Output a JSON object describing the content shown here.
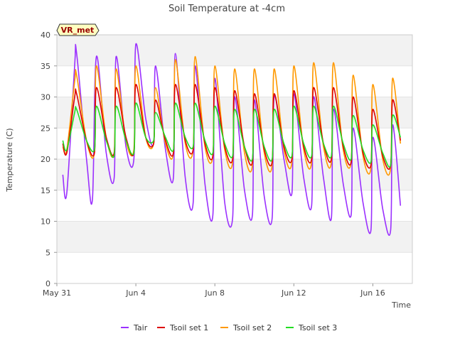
{
  "chart_data": {
    "type": "line",
    "title": "Soil Temperature at -4cm",
    "xlabel": "Time",
    "ylabel": "Temperature (C)",
    "ylim": [
      0,
      40
    ],
    "xlim_days": [
      0,
      18.0
    ],
    "yticks": [
      0,
      5,
      10,
      15,
      20,
      25,
      30,
      35,
      40
    ],
    "xticks": [
      {
        "day": 0,
        "label": "May 31"
      },
      {
        "day": 4,
        "label": "Jun 4"
      },
      {
        "day": 8,
        "label": "Jun 8"
      },
      {
        "day": 12,
        "label": "Jun 12"
      },
      {
        "day": 16,
        "label": "Jun 16"
      }
    ],
    "grid": true,
    "legend_position": "bottom",
    "badge": "VR_met",
    "series": [
      {
        "name": "Tair",
        "color": "#9b30ff",
        "x": [
          0.3,
          0.5,
          0.9,
          1.0,
          1.5,
          1.8,
          2.0,
          2.5,
          2.9,
          3.0,
          3.5,
          3.9,
          4.0,
          4.5,
          4.9,
          5.0,
          5.5,
          5.9,
          6.0,
          6.5,
          6.9,
          7.0,
          7.5,
          7.9,
          8.0,
          8.5,
          8.9,
          9.0,
          9.5,
          9.9,
          10.0,
          10.5,
          10.9,
          11.0,
          11.5,
          11.9,
          12.0,
          12.5,
          12.9,
          13.0,
          13.5,
          13.9,
          14.0,
          14.5,
          14.9,
          15.0,
          15.5,
          15.9,
          16.0,
          16.5,
          16.9,
          17.0,
          17.4
        ],
        "y": [
          17.5,
          14.5,
          35.0,
          37.0,
          20.0,
          13.5,
          36.5,
          21.0,
          17.0,
          36.5,
          22.0,
          20.0,
          38.5,
          26.5,
          22.5,
          35.0,
          21.5,
          17.0,
          37.0,
          17.0,
          13.0,
          35.0,
          16.0,
          11.0,
          33.0,
          13.0,
          10.5,
          30.0,
          15.0,
          11.0,
          29.5,
          14.0,
          10.5,
          30.0,
          20.0,
          14.5,
          30.5,
          17.0,
          12.5,
          30.0,
          17.0,
          10.5,
          28.0,
          16.0,
          11.0,
          25.0,
          13.0,
          8.5,
          23.5,
          12.0,
          8.5,
          25.5,
          12.5
        ]
      },
      {
        "name": "Tsoil set 1",
        "color": "#dd0000",
        "x": [
          0.3,
          0.5,
          0.9,
          1.0,
          1.5,
          1.9,
          2.0,
          2.5,
          2.9,
          3.0,
          3.5,
          3.9,
          4.0,
          4.5,
          4.9,
          5.0,
          5.5,
          5.9,
          6.0,
          6.5,
          6.9,
          7.0,
          7.5,
          7.9,
          8.0,
          8.5,
          8.9,
          9.0,
          9.5,
          9.9,
          10.0,
          10.5,
          10.9,
          11.0,
          11.5,
          11.9,
          12.0,
          12.5,
          12.9,
          13.0,
          13.5,
          13.9,
          14.0,
          14.5,
          14.9,
          15.0,
          15.5,
          15.9,
          16.0,
          16.5,
          16.9,
          17.0,
          17.4
        ],
        "y": [
          22.5,
          21.0,
          30.0,
          30.5,
          23.0,
          21.0,
          31.5,
          23.5,
          21.0,
          31.5,
          23.5,
          21.0,
          32.0,
          23.5,
          22.5,
          29.5,
          23.0,
          21.0,
          32.0,
          23.0,
          21.5,
          32.0,
          22.5,
          20.5,
          31.5,
          22.0,
          20.0,
          31.0,
          22.0,
          19.5,
          30.5,
          21.5,
          19.5,
          30.5,
          22.0,
          20.0,
          31.0,
          22.0,
          20.0,
          31.5,
          22.5,
          20.0,
          31.5,
          22.0,
          19.5,
          30.0,
          21.0,
          19.0,
          28.0,
          20.5,
          19.0,
          29.5,
          23.0
        ]
      },
      {
        "name": "Tsoil set 2",
        "color": "#ff9900",
        "x": [
          0.3,
          0.5,
          0.9,
          1.0,
          1.5,
          1.9,
          2.0,
          2.5,
          2.9,
          3.0,
          3.5,
          3.9,
          4.0,
          4.5,
          4.9,
          5.0,
          5.5,
          5.9,
          6.0,
          6.5,
          6.9,
          7.0,
          7.5,
          7.9,
          8.0,
          8.5,
          8.9,
          9.0,
          9.5,
          9.9,
          10.0,
          10.5,
          10.9,
          11.0,
          11.5,
          11.9,
          12.0,
          12.5,
          12.9,
          13.0,
          13.5,
          13.9,
          14.0,
          14.5,
          14.9,
          15.0,
          15.5,
          15.9,
          16.0,
          16.5,
          16.9,
          17.0,
          17.4
        ],
        "y": [
          22.0,
          21.5,
          32.5,
          33.5,
          23.0,
          21.0,
          35.0,
          23.5,
          21.0,
          34.5,
          23.0,
          21.5,
          35.0,
          23.5,
          22.5,
          31.5,
          22.5,
          21.0,
          36.0,
          22.5,
          21.5,
          36.5,
          22.0,
          20.5,
          35.0,
          21.5,
          19.5,
          34.5,
          21.0,
          19.0,
          34.5,
          21.0,
          19.0,
          34.5,
          21.5,
          19.5,
          35.0,
          21.5,
          19.5,
          35.5,
          22.0,
          19.5,
          35.5,
          21.5,
          19.5,
          33.5,
          20.5,
          18.5,
          32.0,
          20.0,
          18.5,
          33.0,
          22.5
        ]
      },
      {
        "name": "Tsoil set 3",
        "color": "#22dd22",
        "x": [
          0.3,
          0.5,
          0.9,
          1.0,
          1.5,
          1.9,
          2.0,
          2.5,
          2.9,
          3.0,
          3.5,
          3.9,
          4.0,
          4.5,
          4.9,
          5.0,
          5.5,
          5.9,
          6.0,
          6.5,
          6.9,
          7.0,
          7.5,
          7.9,
          8.0,
          8.5,
          8.9,
          9.0,
          9.5,
          9.9,
          10.0,
          10.5,
          10.9,
          11.0,
          11.5,
          11.9,
          12.0,
          12.5,
          12.9,
          13.0,
          13.5,
          13.9,
          14.0,
          14.5,
          14.9,
          15.0,
          15.5,
          15.9,
          16.0,
          16.5,
          16.9,
          17.0,
          17.4
        ],
        "y": [
          23.0,
          21.5,
          27.5,
          28.0,
          23.0,
          21.5,
          28.5,
          23.0,
          20.5,
          28.5,
          23.0,
          21.0,
          29.0,
          23.5,
          23.0,
          27.5,
          23.5,
          21.5,
          29.0,
          23.5,
          22.0,
          29.0,
          23.0,
          21.0,
          28.5,
          22.5,
          20.5,
          28.0,
          22.0,
          20.0,
          28.0,
          22.0,
          20.0,
          28.0,
          22.5,
          20.5,
          28.5,
          22.5,
          20.5,
          28.5,
          22.5,
          20.5,
          28.5,
          22.5,
          20.0,
          27.0,
          21.5,
          19.5,
          25.5,
          21.0,
          19.0,
          27.0,
          23.5
        ]
      }
    ]
  }
}
